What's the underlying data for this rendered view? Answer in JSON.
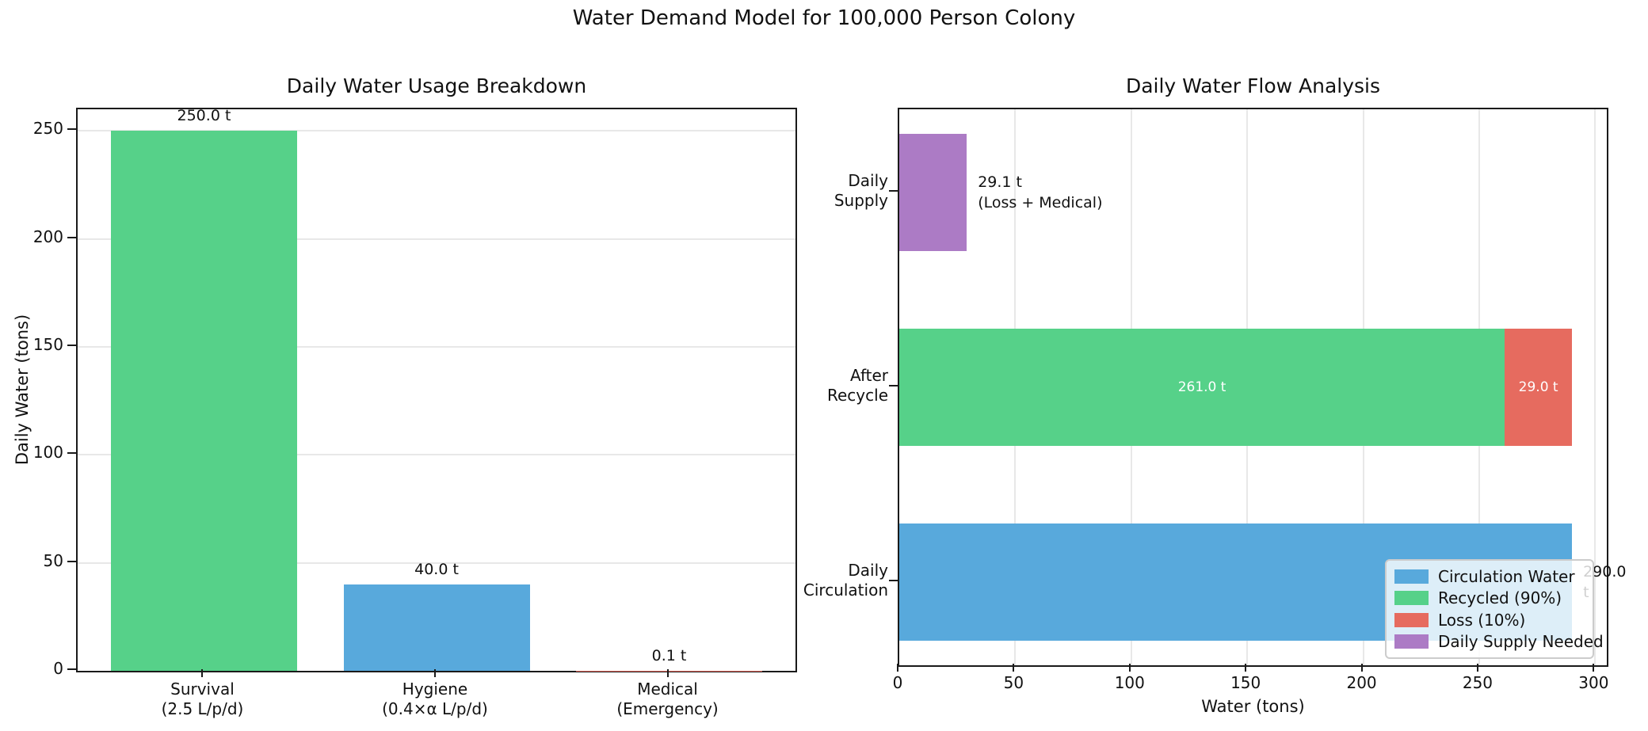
{
  "suptitle": "Water Demand Model for 100,000 Person Colony",
  "colors": {
    "green": "#56d189",
    "blue": "#58a9dc",
    "red": "#e66b5f",
    "purple": "#ac7bc5",
    "grid": "#e8e8e8",
    "spine": "#1a1a1a",
    "text": "#111111",
    "inside_label": "#ffffff"
  },
  "chart_data": [
    {
      "id": "usage",
      "type": "bar",
      "title": "Daily Water Usage Breakdown",
      "ylabel": "Daily Water (tons)",
      "categories": [
        [
          "Survival",
          "(2.5 L/p/d)"
        ],
        [
          "Hygiene",
          "(0.4×α L/p/d)"
        ],
        [
          "Medical",
          "(Emergency)"
        ]
      ],
      "values": [
        250.0,
        40.0,
        0.1
      ],
      "bar_labels": [
        "250.0 t",
        "40.0 t",
        "0.1 t"
      ],
      "bar_color_keys": [
        "green",
        "blue",
        "red"
      ],
      "yticks": [
        0,
        50,
        100,
        150,
        200,
        250
      ],
      "ytick_labels": [
        "0",
        "50",
        "100",
        "150",
        "200",
        "250"
      ],
      "ylim": [
        0,
        260
      ],
      "grid": "horizontal"
    },
    {
      "id": "flow",
      "type": "barh-stacked",
      "title": "Daily Water Flow Analysis",
      "xlabel": "Water (tons)",
      "categories": [
        [
          "Daily",
          "Supply"
        ],
        [
          "After",
          "Recycle"
        ],
        [
          "Daily",
          "Circulation"
        ]
      ],
      "rows": [
        {
          "name": "Daily Supply",
          "segments": [
            {
              "value": 29.1,
              "color_key": "purple"
            }
          ],
          "annotation": {
            "lines": [
              "29.1 t",
              "(Loss + Medical)"
            ]
          }
        },
        {
          "name": "After Recycle",
          "segments": [
            {
              "value": 261.0,
              "color_key": "green",
              "label": "261.0 t"
            },
            {
              "value": 29.0,
              "color_key": "red",
              "label": "29.0 t"
            }
          ]
        },
        {
          "name": "Daily Circulation",
          "segments": [
            {
              "value": 290.0,
              "color_key": "blue"
            }
          ],
          "annotation": {
            "lines": [
              "290.0 t"
            ]
          }
        }
      ],
      "xticks": [
        0,
        50,
        100,
        150,
        200,
        250,
        300
      ],
      "xtick_labels": [
        "0",
        "50",
        "100",
        "150",
        "200",
        "250",
        "300"
      ],
      "xlim": [
        0,
        305
      ],
      "grid": "vertical",
      "legend": {
        "entries": [
          {
            "label": "Circulation Water",
            "color_key": "blue"
          },
          {
            "label": "Recycled (90%)",
            "color_key": "green"
          },
          {
            "label": "Loss (10%)",
            "color_key": "red"
          },
          {
            "label": "Daily Supply Needed",
            "color_key": "purple"
          }
        ]
      }
    }
  ]
}
